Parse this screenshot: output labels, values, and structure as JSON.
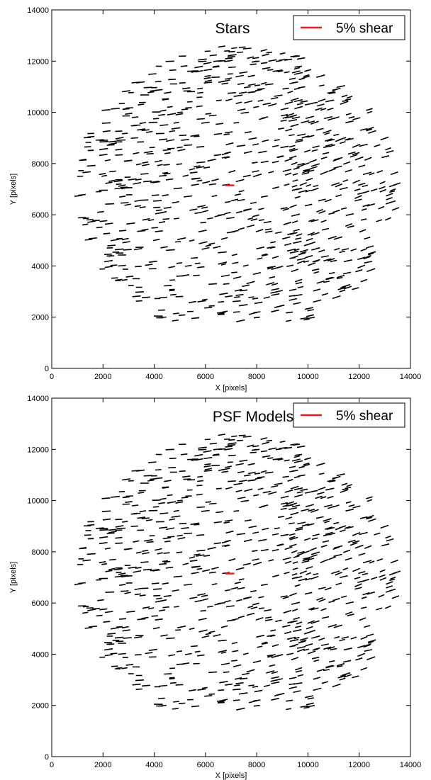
{
  "chart_data": [
    {
      "type": "whisker",
      "title": "Stars",
      "xlabel": "X [pixels]",
      "ylabel": "Y [pixels]",
      "xlim": [
        0,
        14000
      ],
      "ylim": [
        0,
        14000
      ],
      "xticks": [
        0,
        2000,
        4000,
        6000,
        8000,
        10000,
        12000,
        14000
      ],
      "yticks": [
        0,
        2000,
        4000,
        6000,
        8000,
        10000,
        12000,
        14000
      ],
      "legend": {
        "label": "5% shear",
        "color": "#e31a1c",
        "position": "top-right"
      },
      "reference_whisker": {
        "x": 6950,
        "y": 7150,
        "shear": 0.05,
        "angle_deg": 0
      },
      "whisker_color": "#000000",
      "seed": 17,
      "field": {
        "center": [
          7200,
          6900
        ],
        "extent": "roughly circular field, x 700-14000, y 1000-12800",
        "count": 820,
        "typical_angle_deg": 8,
        "typical_shear": 0.04
      },
      "grid": false
    },
    {
      "type": "whisker",
      "title": "PSF Models",
      "xlabel": "X [pixels]",
      "ylabel": "Y [pixels]",
      "xlim": [
        0,
        14000
      ],
      "ylim": [
        0,
        14000
      ],
      "xticks": [
        0,
        2000,
        4000,
        6000,
        8000,
        10000,
        12000,
        14000
      ],
      "yticks": [
        0,
        2000,
        4000,
        6000,
        8000,
        10000,
        12000,
        14000
      ],
      "legend": {
        "label": "5% shear",
        "color": "#e31a1c",
        "position": "top-right"
      },
      "reference_whisker": {
        "x": 6950,
        "y": 7150,
        "shear": 0.05,
        "angle_deg": 0
      },
      "whisker_color": "#000000",
      "seed": 17,
      "field": {
        "center": [
          7200,
          6900
        ],
        "extent": "roughly circular field, x 700-14000, y 1000-12800",
        "count": 820,
        "typical_angle_deg": 8,
        "typical_shear": 0.04
      },
      "grid": false
    }
  ]
}
